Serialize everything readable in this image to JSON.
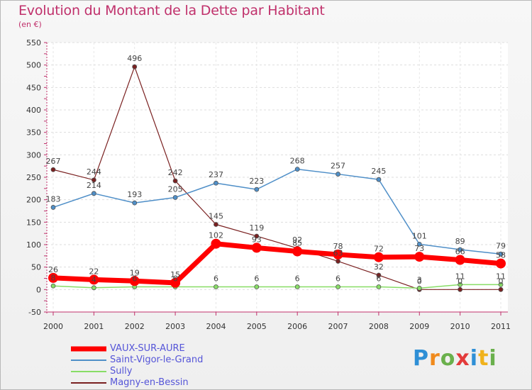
{
  "title": "Evolution du Montant de la Dette par Habitant",
  "subtitle": "(en €)",
  "logo_text": "Proxiti",
  "chart_data": {
    "type": "line",
    "title": "Evolution du Montant de la Dette par Habitant",
    "subtitle": "(en €)",
    "x": [
      "2000",
      "2001",
      "2002",
      "2003",
      "2004",
      "2005",
      "2006",
      "2007",
      "2008",
      "2009",
      "2010",
      "2011"
    ],
    "ylim": [
      -50,
      550
    ],
    "yticks": [
      -50,
      0,
      50,
      100,
      150,
      200,
      250,
      300,
      350,
      400,
      450,
      500,
      550
    ],
    "grid": "horizontal dashed",
    "legend_position": "bottom-left",
    "series": [
      {
        "name": "VAUX-SUR-AURE",
        "color": "#ff0000",
        "values": [
          26,
          22,
          19,
          15,
          102,
          93,
          85,
          78,
          72,
          73,
          66,
          58
        ],
        "labels": [
          "26",
          "22",
          "19",
          "15",
          "102",
          "93",
          "85",
          "78",
          "72",
          "73",
          "66",
          "58"
        ]
      },
      {
        "name": "Saint-Vigor-le-Grand",
        "color": "#4f8fc8",
        "values": [
          183,
          214,
          193,
          205,
          237,
          223,
          268,
          257,
          245,
          101,
          89,
          79
        ],
        "labels": [
          "183",
          "214",
          "193",
          "205",
          "237",
          "223",
          "268",
          "257",
          "245",
          "101",
          "89",
          "79"
        ]
      },
      {
        "name": "Sully",
        "color": "#88dd66",
        "values": [
          8,
          4,
          6,
          6,
          6,
          6,
          6,
          6,
          6,
          3,
          11,
          11
        ],
        "labels": [
          "8",
          "4",
          "6",
          "6",
          "6",
          "6",
          "6",
          "6",
          "6",
          "3",
          "11",
          "11"
        ]
      },
      {
        "name": "Magny-en-Bessin",
        "color": "#7a2020",
        "values": [
          267,
          244,
          496,
          242,
          145,
          119,
          92,
          63,
          32,
          0,
          0,
          0
        ],
        "labels": [
          "267",
          "244",
          "496",
          "242",
          "145",
          "119",
          "92",
          "63",
          "32",
          "0",
          "0",
          "0"
        ]
      }
    ]
  }
}
